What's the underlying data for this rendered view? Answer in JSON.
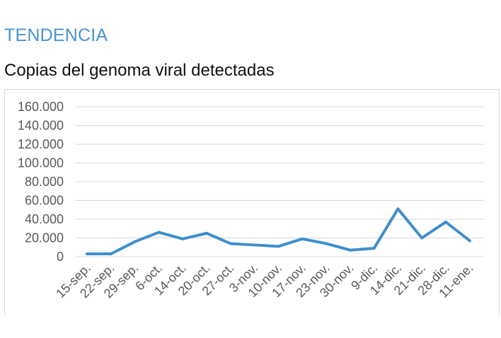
{
  "header": {
    "section_title": "TENDENCIA",
    "chart_title": "Copias del genoma viral detectadas"
  },
  "colors": {
    "accent": "#4a94cb",
    "line": "#3f8fcc",
    "grid": "#d9d9d9",
    "tick_text": "#595959"
  },
  "chart_data": {
    "type": "line",
    "title": "Copias del genoma viral detectadas",
    "xlabel": "",
    "ylabel": "",
    "ylim": [
      0,
      160000
    ],
    "yticks": [
      0,
      20000,
      40000,
      60000,
      80000,
      100000,
      120000,
      140000,
      160000
    ],
    "ytick_labels": [
      "0",
      "20.000",
      "40.000",
      "60.000",
      "80.000",
      "100.000",
      "120.000",
      "140.000",
      "160.000"
    ],
    "grid": true,
    "legend": "none",
    "categories": [
      "15-sep.",
      "22-sep.",
      "29-sep.",
      "6-oct.",
      "14-oct.",
      "20-oct.",
      "27-oct.",
      "3-nov.",
      "10-nov.",
      "17-nov.",
      "23-nov.",
      "30-nov.",
      "9-dic.",
      "14-dic.",
      "21-dic.",
      "28-dic.",
      "11-ene."
    ],
    "series": [
      {
        "values": [
          3000,
          3000,
          16000,
          26000,
          19000,
          25000,
          14000,
          12500,
          11000,
          19000,
          14000,
          7000,
          9000,
          51000,
          20000,
          37000,
          17000
        ]
      }
    ]
  }
}
